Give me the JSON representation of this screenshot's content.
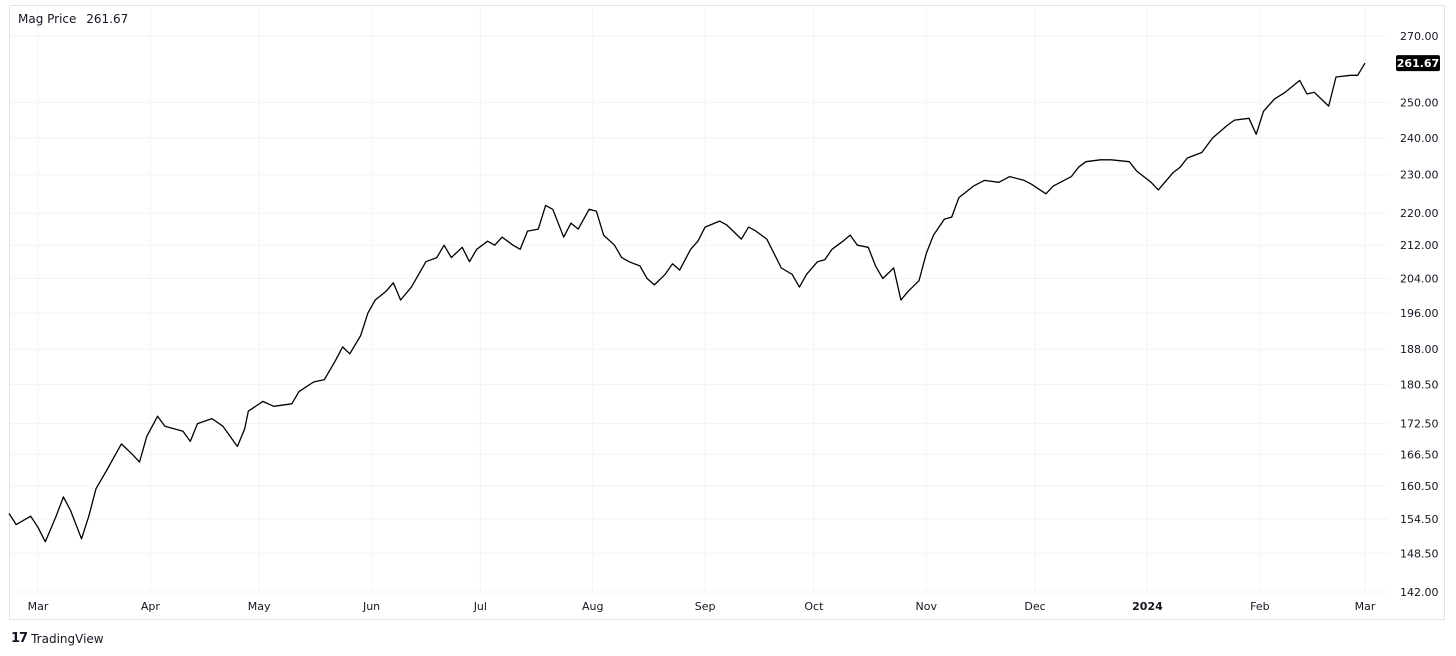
{
  "legend": {
    "symbol": "Mag Price",
    "value": "261.67"
  },
  "brand": {
    "name": "TradingView"
  },
  "price_tag": "261.67",
  "colors": {
    "line": "#000000",
    "grid": "#f0f3fa",
    "axis_text": "#131722",
    "tag_bg": "#000000",
    "tag_text": "#ffffff"
  },
  "chart_data": {
    "type": "line",
    "y_scale": "log",
    "ylim": [
      142.0,
      270.0
    ],
    "y_ticks": [
      "270.00",
      "250.00",
      "240.00",
      "230.00",
      "220.00",
      "212.00",
      "204.00",
      "196.00",
      "188.00",
      "180.50",
      "172.50",
      "166.50",
      "160.50",
      "154.50",
      "148.50",
      "142.00"
    ],
    "x_ticks": [
      {
        "label": "Mar",
        "date": "2023-03-01",
        "bold": false
      },
      {
        "label": "Apr",
        "date": "2023-04-01",
        "bold": false
      },
      {
        "label": "May",
        "date": "2023-05-01",
        "bold": false
      },
      {
        "label": "Jun",
        "date": "2023-06-01",
        "bold": false
      },
      {
        "label": "Jul",
        "date": "2023-07-01",
        "bold": false
      },
      {
        "label": "Aug",
        "date": "2023-08-01",
        "bold": false
      },
      {
        "label": "Sep",
        "date": "2023-09-01",
        "bold": false
      },
      {
        "label": "Oct",
        "date": "2023-10-01",
        "bold": false
      },
      {
        "label": "Nov",
        "date": "2023-11-01",
        "bold": false
      },
      {
        "label": "Dec",
        "date": "2023-12-01",
        "bold": false
      },
      {
        "label": "2024",
        "date": "2024-01-01",
        "bold": true
      },
      {
        "label": "Feb",
        "date": "2024-02-01",
        "bold": false
      },
      {
        "label": "Mar",
        "date": "2024-03-01",
        "bold": false
      }
    ],
    "series": [
      {
        "points": [
          [
            "2023-02-21",
            155.5
          ],
          [
            "2023-02-23",
            153.5
          ],
          [
            "2023-02-27",
            155.0
          ],
          [
            "2023-03-01",
            153.0
          ],
          [
            "2023-03-03",
            150.5
          ],
          [
            "2023-03-06",
            155.0
          ],
          [
            "2023-03-08",
            158.5
          ],
          [
            "2023-03-10",
            156.0
          ],
          [
            "2023-03-13",
            151.0
          ],
          [
            "2023-03-15",
            155.0
          ],
          [
            "2023-03-17",
            160.0
          ],
          [
            "2023-03-20",
            163.5
          ],
          [
            "2023-03-22",
            166.0
          ],
          [
            "2023-03-24",
            168.5
          ],
          [
            "2023-03-27",
            166.5
          ],
          [
            "2023-03-29",
            165.0
          ],
          [
            "2023-03-31",
            170.0
          ],
          [
            "2023-04-03",
            174.0
          ],
          [
            "2023-04-05",
            172.0
          ],
          [
            "2023-04-10",
            171.0
          ],
          [
            "2023-04-12",
            169.0
          ],
          [
            "2023-04-14",
            172.5
          ],
          [
            "2023-04-18",
            173.5
          ],
          [
            "2023-04-21",
            172.0
          ],
          [
            "2023-04-25",
            168.0
          ],
          [
            "2023-04-27",
            171.5
          ],
          [
            "2023-04-28",
            175.0
          ],
          [
            "2023-05-02",
            177.0
          ],
          [
            "2023-05-05",
            176.0
          ],
          [
            "2023-05-10",
            176.5
          ],
          [
            "2023-05-12",
            179.0
          ],
          [
            "2023-05-16",
            181.0
          ],
          [
            "2023-05-19",
            181.5
          ],
          [
            "2023-05-22",
            185.5
          ],
          [
            "2023-05-24",
            188.5
          ],
          [
            "2023-05-26",
            187.0
          ],
          [
            "2023-05-29",
            191.0
          ],
          [
            "2023-05-31",
            196.0
          ],
          [
            "2023-06-02",
            199.0
          ],
          [
            "2023-06-05",
            201.0
          ],
          [
            "2023-06-07",
            203.0
          ],
          [
            "2023-06-09",
            199.0
          ],
          [
            "2023-06-12",
            202.0
          ],
          [
            "2023-06-14",
            205.0
          ],
          [
            "2023-06-16",
            208.0
          ],
          [
            "2023-06-19",
            209.0
          ],
          [
            "2023-06-21",
            212.0
          ],
          [
            "2023-06-23",
            209.0
          ],
          [
            "2023-06-26",
            211.5
          ],
          [
            "2023-06-28",
            208.0
          ],
          [
            "2023-06-30",
            211.0
          ],
          [
            "2023-07-03",
            213.0
          ],
          [
            "2023-07-05",
            212.0
          ],
          [
            "2023-07-07",
            214.0
          ],
          [
            "2023-07-10",
            212.0
          ],
          [
            "2023-07-12",
            211.0
          ],
          [
            "2023-07-14",
            215.5
          ],
          [
            "2023-07-17",
            216.0
          ],
          [
            "2023-07-19",
            222.0
          ],
          [
            "2023-07-21",
            221.0
          ],
          [
            "2023-07-24",
            214.0
          ],
          [
            "2023-07-26",
            217.5
          ],
          [
            "2023-07-28",
            216.0
          ],
          [
            "2023-07-31",
            221.0
          ],
          [
            "2023-08-02",
            220.5
          ],
          [
            "2023-08-04",
            214.5
          ],
          [
            "2023-08-07",
            212.0
          ],
          [
            "2023-08-09",
            209.0
          ],
          [
            "2023-08-11",
            208.0
          ],
          [
            "2023-08-14",
            207.0
          ],
          [
            "2023-08-16",
            204.0
          ],
          [
            "2023-08-18",
            202.5
          ],
          [
            "2023-08-21",
            205.0
          ],
          [
            "2023-08-23",
            207.5
          ],
          [
            "2023-08-25",
            206.0
          ],
          [
            "2023-08-28",
            211.0
          ],
          [
            "2023-08-30",
            213.0
          ],
          [
            "2023-09-01",
            216.5
          ],
          [
            "2023-09-05",
            218.0
          ],
          [
            "2023-09-07",
            217.0
          ],
          [
            "2023-09-11",
            213.5
          ],
          [
            "2023-09-13",
            216.5
          ],
          [
            "2023-09-15",
            215.5
          ],
          [
            "2023-09-18",
            213.5
          ],
          [
            "2023-09-20",
            210.0
          ],
          [
            "2023-09-22",
            206.5
          ],
          [
            "2023-09-25",
            205.0
          ],
          [
            "2023-09-27",
            202.0
          ],
          [
            "2023-09-29",
            205.0
          ],
          [
            "2023-10-02",
            208.0
          ],
          [
            "2023-10-04",
            208.5
          ],
          [
            "2023-10-06",
            211.0
          ],
          [
            "2023-10-09",
            213.0
          ],
          [
            "2023-10-11",
            214.5
          ],
          [
            "2023-10-13",
            212.0
          ],
          [
            "2023-10-16",
            211.5
          ],
          [
            "2023-10-18",
            207.0
          ],
          [
            "2023-10-20",
            204.0
          ],
          [
            "2023-10-23",
            206.5
          ],
          [
            "2023-10-25",
            199.0
          ],
          [
            "2023-10-27",
            201.0
          ],
          [
            "2023-10-30",
            203.5
          ],
          [
            "2023-11-01",
            210.0
          ],
          [
            "2023-11-03",
            214.5
          ],
          [
            "2023-11-06",
            218.5
          ],
          [
            "2023-11-08",
            219.0
          ],
          [
            "2023-11-10",
            224.0
          ],
          [
            "2023-11-14",
            227.0
          ],
          [
            "2023-11-17",
            228.5
          ],
          [
            "2023-11-21",
            228.0
          ],
          [
            "2023-11-24",
            229.5
          ],
          [
            "2023-11-28",
            228.5
          ],
          [
            "2023-11-30",
            227.5
          ],
          [
            "2023-12-04",
            225.0
          ],
          [
            "2023-12-06",
            227.0
          ],
          [
            "2023-12-08",
            228.0
          ],
          [
            "2023-12-11",
            229.5
          ],
          [
            "2023-12-13",
            232.0
          ],
          [
            "2023-12-15",
            233.5
          ],
          [
            "2023-12-19",
            234.0
          ],
          [
            "2023-12-22",
            234.0
          ],
          [
            "2023-12-27",
            233.5
          ],
          [
            "2023-12-29",
            231.0
          ],
          [
            "2024-01-02",
            228.0
          ],
          [
            "2024-01-04",
            226.0
          ],
          [
            "2024-01-08",
            230.5
          ],
          [
            "2024-01-10",
            232.0
          ],
          [
            "2024-01-12",
            234.5
          ],
          [
            "2024-01-16",
            236.0
          ],
          [
            "2024-01-19",
            240.0
          ],
          [
            "2024-01-23",
            243.5
          ],
          [
            "2024-01-25",
            245.0
          ],
          [
            "2024-01-29",
            245.5
          ],
          [
            "2024-01-31",
            241.0
          ],
          [
            "2024-02-02",
            247.5
          ],
          [
            "2024-02-05",
            251.0
          ],
          [
            "2024-02-08",
            253.0
          ],
          [
            "2024-02-12",
            256.5
          ],
          [
            "2024-02-14",
            252.5
          ],
          [
            "2024-02-16",
            253.0
          ],
          [
            "2024-02-20",
            249.0
          ],
          [
            "2024-02-22",
            257.5
          ],
          [
            "2024-02-26",
            258.0
          ],
          [
            "2024-02-28",
            258.0
          ],
          [
            "2024-03-01",
            261.67
          ]
        ]
      }
    ]
  }
}
